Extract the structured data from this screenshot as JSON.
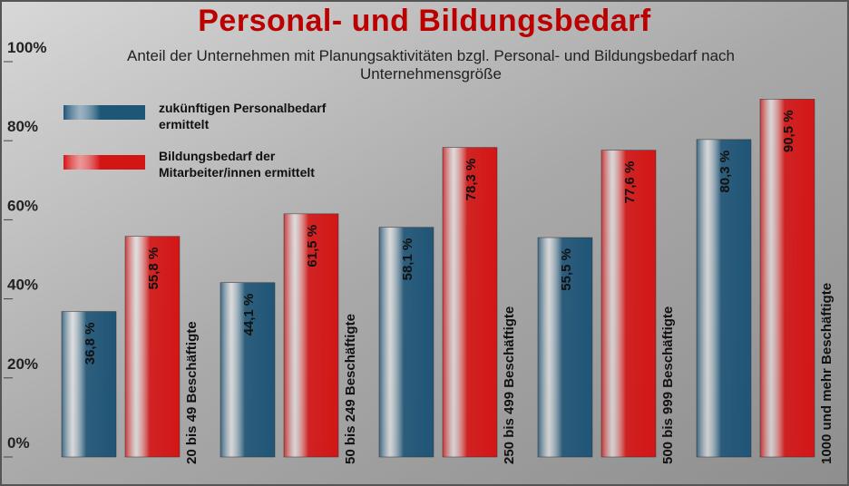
{
  "chart_data": {
    "type": "bar",
    "title": "Personal- und Bildungsbedarf",
    "subtitle": "Anteil der Unternehmen mit Planungsaktivitäten bzgl. Personal- und Bildungsbedarf nach Unternehmensgröße",
    "categories": [
      "20 bis 49 Beschäftigte",
      "50 bis 249 Beschäftigte",
      "250 bis 499 Beschäftigte",
      "500 bis 999 Beschäftigte",
      "1000 und mehr Beschäftigte"
    ],
    "series": [
      {
        "name": "zukünftigen Personalbedarf ermittelt",
        "color": "#1f5577",
        "values": [
          36.8,
          44.1,
          58.1,
          55.5,
          80.3
        ],
        "value_labels": [
          "36,8 %",
          "44,1 %",
          "58,1 %",
          "55,5 %",
          "80,3 %"
        ]
      },
      {
        "name": "Bildungsbedarf der Mitarbeiter/innen ermittelt",
        "color": "#d41515",
        "values": [
          55.8,
          61.5,
          78.3,
          77.6,
          90.5
        ],
        "value_labels": [
          "55,8 %",
          "61,5 %",
          "78,3 %",
          "77,6 %",
          "90,5 %"
        ]
      }
    ],
    "ylim": [
      0,
      100
    ],
    "yticks": [
      {
        "value": 0,
        "label": "0%"
      },
      {
        "value": 20,
        "label": "20%"
      },
      {
        "value": 40,
        "label": "40%"
      },
      {
        "value": 60,
        "label": "60%"
      },
      {
        "value": 80,
        "label": "80%"
      },
      {
        "value": 100,
        "label": "100%"
      }
    ]
  }
}
